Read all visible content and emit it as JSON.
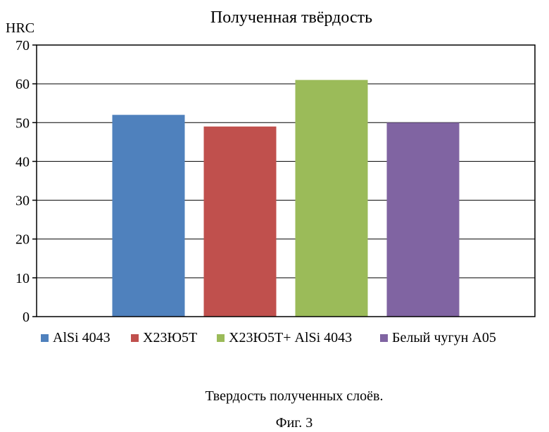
{
  "chart_data": {
    "type": "bar",
    "title": "Полученная твёрдость",
    "ylabel": "HRC",
    "xlabel": "",
    "ylim": [
      0,
      70
    ],
    "yticks": [
      0,
      10,
      20,
      30,
      40,
      50,
      60,
      70
    ],
    "grid": true,
    "legend_position": "bottom",
    "series": [
      {
        "name": "AlSi 4043",
        "value": 52,
        "color": "#4f81bd"
      },
      {
        "name": "Х23Ю5Т",
        "value": 49,
        "color": "#c0504d"
      },
      {
        "name": "Х23Ю5Т+ AlSi 4043",
        "value": 61,
        "color": "#9bbb59"
      },
      {
        "name": "Белый чугун А05",
        "value": 50,
        "color": "#8064a2"
      }
    ]
  },
  "captions": {
    "description": "Твердость полученных слоёв.",
    "figure": "Фиг. 3"
  }
}
